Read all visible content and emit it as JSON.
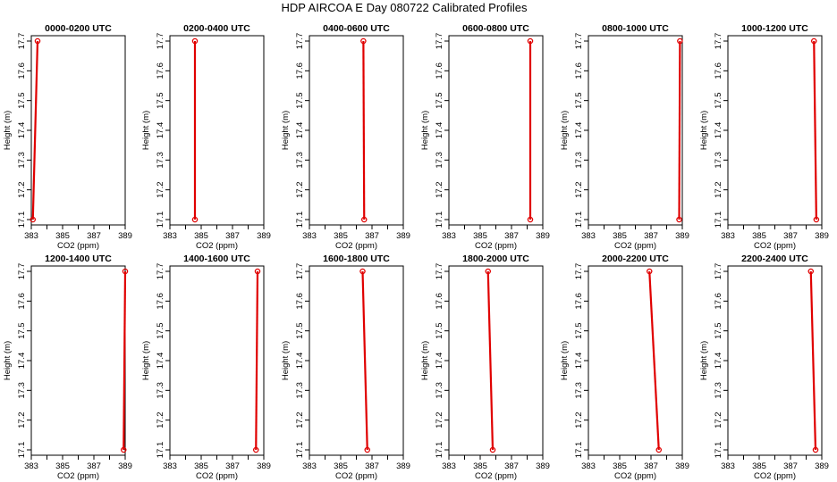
{
  "figure": {
    "title": "HDP AIRCOA E  Day 080722  Calibrated Profiles"
  },
  "chart_data": [
    {
      "type": "line",
      "title": "0000-0200 UTC",
      "xlabel": "CO2 (ppm)",
      "ylabel": "Height (m)",
      "xlim": [
        383,
        389
      ],
      "ylim": [
        17.1,
        17.7
      ],
      "xticks": [
        383,
        385,
        387,
        389
      ],
      "yticks": [
        17.1,
        17.2,
        17.3,
        17.4,
        17.5,
        17.6,
        17.7
      ],
      "series": [
        {
          "x": [
            383.1,
            383.4
          ],
          "y": [
            17.1,
            17.7
          ]
        }
      ],
      "color": "#e00000"
    },
    {
      "type": "line",
      "title": "0200-0400 UTC",
      "xlabel": "CO2 (ppm)",
      "ylabel": "Height (m)",
      "xlim": [
        383,
        389
      ],
      "ylim": [
        17.1,
        17.7
      ],
      "xticks": [
        383,
        385,
        387,
        389
      ],
      "yticks": [
        17.1,
        17.2,
        17.3,
        17.4,
        17.5,
        17.6,
        17.7
      ],
      "series": [
        {
          "x": [
            384.6,
            384.6
          ],
          "y": [
            17.1,
            17.7
          ]
        }
      ],
      "color": "#e00000"
    },
    {
      "type": "line",
      "title": "0400-0600 UTC",
      "xlabel": "CO2 (ppm)",
      "ylabel": "Height (m)",
      "xlim": [
        383,
        389
      ],
      "ylim": [
        17.1,
        17.7
      ],
      "xticks": [
        383,
        385,
        387,
        389
      ],
      "yticks": [
        17.1,
        17.2,
        17.3,
        17.4,
        17.5,
        17.6,
        17.7
      ],
      "series": [
        {
          "x": [
            386.5,
            386.45
          ],
          "y": [
            17.1,
            17.7
          ]
        }
      ],
      "color": "#e00000"
    },
    {
      "type": "line",
      "title": "0600-0800 UTC",
      "xlabel": "CO2 (ppm)",
      "ylabel": "Height (m)",
      "xlim": [
        383,
        389
      ],
      "ylim": [
        17.1,
        17.7
      ],
      "xticks": [
        383,
        385,
        387,
        389
      ],
      "yticks": [
        17.1,
        17.2,
        17.3,
        17.4,
        17.5,
        17.6,
        17.7
      ],
      "series": [
        {
          "x": [
            388.2,
            388.2
          ],
          "y": [
            17.1,
            17.7
          ]
        }
      ],
      "color": "#e00000"
    },
    {
      "type": "line",
      "title": "0800-1000 UTC",
      "xlabel": "CO2 (ppm)",
      "ylabel": "Height (m)",
      "xlim": [
        383,
        389
      ],
      "ylim": [
        17.1,
        17.7
      ],
      "xticks": [
        383,
        385,
        387,
        389
      ],
      "yticks": [
        17.1,
        17.2,
        17.3,
        17.4,
        17.5,
        17.6,
        17.7
      ],
      "series": [
        {
          "x": [
            388.8,
            388.85
          ],
          "y": [
            17.1,
            17.7
          ]
        }
      ],
      "color": "#e00000"
    },
    {
      "type": "line",
      "title": "1000-1200 UTC",
      "xlabel": "CO2 (ppm)",
      "ylabel": "Height (m)",
      "xlim": [
        383,
        389
      ],
      "ylim": [
        17.1,
        17.7
      ],
      "xticks": [
        383,
        385,
        387,
        389
      ],
      "yticks": [
        17.1,
        17.2,
        17.3,
        17.4,
        17.5,
        17.6,
        17.7
      ],
      "series": [
        {
          "x": [
            388.65,
            388.5
          ],
          "y": [
            17.1,
            17.7
          ]
        }
      ],
      "color": "#e00000"
    },
    {
      "type": "line",
      "title": "1200-1400 UTC",
      "xlabel": "CO2 (ppm)",
      "ylabel": "Height (m)",
      "xlim": [
        383,
        389
      ],
      "ylim": [
        17.1,
        17.7
      ],
      "xticks": [
        383,
        385,
        387,
        389
      ],
      "yticks": [
        17.1,
        17.2,
        17.3,
        17.4,
        17.5,
        17.6,
        17.7
      ],
      "series": [
        {
          "x": [
            388.9,
            389.0
          ],
          "y": [
            17.1,
            17.7
          ]
        }
      ],
      "color": "#e00000"
    },
    {
      "type": "line",
      "title": "1400-1600 UTC",
      "xlabel": "CO2 (ppm)",
      "ylabel": "Height (m)",
      "xlim": [
        383,
        389
      ],
      "ylim": [
        17.1,
        17.7
      ],
      "xticks": [
        383,
        385,
        387,
        389
      ],
      "yticks": [
        17.1,
        17.2,
        17.3,
        17.4,
        17.5,
        17.6,
        17.7
      ],
      "series": [
        {
          "x": [
            388.5,
            388.6
          ],
          "y": [
            17.1,
            17.7
          ]
        }
      ],
      "color": "#e00000"
    },
    {
      "type": "line",
      "title": "1600-1800 UTC",
      "xlabel": "CO2 (ppm)",
      "ylabel": "Height (m)",
      "xlim": [
        383,
        389
      ],
      "ylim": [
        17.1,
        17.7
      ],
      "xticks": [
        383,
        385,
        387,
        389
      ],
      "yticks": [
        17.1,
        17.2,
        17.3,
        17.4,
        17.5,
        17.6,
        17.7
      ],
      "series": [
        {
          "x": [
            386.7,
            386.4
          ],
          "y": [
            17.1,
            17.7
          ]
        }
      ],
      "color": "#e00000"
    },
    {
      "type": "line",
      "title": "1800-2000 UTC",
      "xlabel": "CO2 (ppm)",
      "ylabel": "Height (m)",
      "xlim": [
        383,
        389
      ],
      "ylim": [
        17.1,
        17.7
      ],
      "xticks": [
        383,
        385,
        387,
        389
      ],
      "yticks": [
        17.1,
        17.2,
        17.3,
        17.4,
        17.5,
        17.6,
        17.7
      ],
      "series": [
        {
          "x": [
            385.8,
            385.5
          ],
          "y": [
            17.1,
            17.7
          ]
        }
      ],
      "color": "#e00000"
    },
    {
      "type": "line",
      "title": "2000-2200 UTC",
      "xlabel": "CO2 (ppm)",
      "ylabel": "Height (m)",
      "xlim": [
        383,
        389
      ],
      "ylim": [
        17.1,
        17.7
      ],
      "xticks": [
        383,
        385,
        387,
        389
      ],
      "yticks": [
        17.1,
        17.2,
        17.3,
        17.4,
        17.5,
        17.6,
        17.7
      ],
      "series": [
        {
          "x": [
            387.5,
            386.9
          ],
          "y": [
            17.1,
            17.7
          ]
        }
      ],
      "color": "#e00000"
    },
    {
      "type": "line",
      "title": "2200-2400 UTC",
      "xlabel": "CO2 (ppm)",
      "ylabel": "Height (m)",
      "xlim": [
        383,
        389
      ],
      "ylim": [
        17.1,
        17.7
      ],
      "xticks": [
        383,
        385,
        387,
        389
      ],
      "yticks": [
        17.1,
        17.2,
        17.3,
        17.4,
        17.5,
        17.6,
        17.7
      ],
      "series": [
        {
          "x": [
            388.6,
            388.3
          ],
          "y": [
            17.1,
            17.7
          ]
        }
      ],
      "color": "#e00000"
    }
  ]
}
